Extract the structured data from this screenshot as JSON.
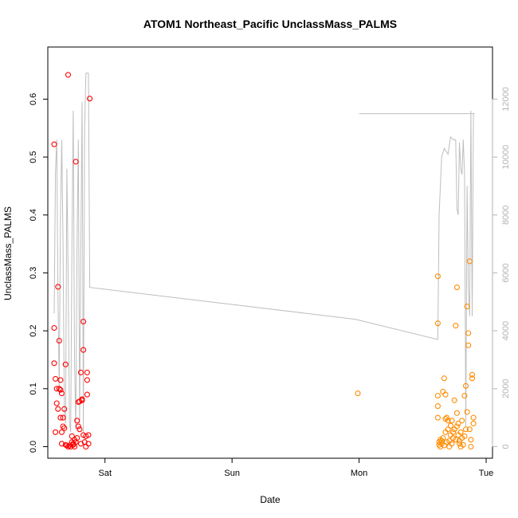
{
  "chart_data": {
    "type": "scatter",
    "title": "ATOM1 Northeast_Pacific UnclassMass_PALMS",
    "xlabel": "Date",
    "ylabel": "UnclassMass_PALMS",
    "x_ticks": [
      "Sat",
      "Sun",
      "Mon",
      "Tue"
    ],
    "x_range_days": [
      -0.45,
      3.05
    ],
    "ylim": [
      -0.02,
      0.69
    ],
    "y_ticks": [
      "0.0",
      "0.1",
      "0.2",
      "0.3",
      "0.4",
      "0.5",
      "0.6"
    ],
    "y2_ticks": [
      "0",
      "2000",
      "4000",
      "6000",
      "8000",
      "10000",
      "12000"
    ],
    "y2lim": [
      -400,
      13800
    ],
    "grid": false,
    "legend": "none",
    "colors": {
      "series1": "#ff0000",
      "series2": "#ff8c00",
      "altitude": "#bebebe",
      "axis": "#000000",
      "right_axis": "#b3b3b3"
    },
    "series": [
      {
        "color": "#ff0000",
        "points": [
          [
            -0.4,
            0.522
          ],
          [
            -0.4,
            0.205
          ],
          [
            -0.4,
            0.144
          ],
          [
            -0.39,
            0.117
          ],
          [
            -0.39,
            0.025
          ],
          [
            -0.38,
            0.1
          ],
          [
            -0.38,
            0.075
          ],
          [
            -0.37,
            0.065
          ],
          [
            -0.37,
            0.276
          ],
          [
            -0.36,
            0.183
          ],
          [
            -0.36,
            0.1
          ],
          [
            -0.35,
            0.115
          ],
          [
            -0.35,
            0.098
          ],
          [
            -0.35,
            0.05
          ],
          [
            -0.34,
            0.092
          ],
          [
            -0.34,
            0.025
          ],
          [
            -0.34,
            0.005
          ],
          [
            -0.33,
            0.05
          ],
          [
            -0.33,
            0.035
          ],
          [
            -0.32,
            0.065
          ],
          [
            -0.32,
            0.032
          ],
          [
            -0.31,
            0.142
          ],
          [
            -0.31,
            0.003
          ],
          [
            -0.3,
            0.002
          ],
          [
            -0.29,
            0.642
          ],
          [
            -0.29,
            0.0
          ],
          [
            -0.28,
            0.002
          ],
          [
            -0.27,
            0.0
          ],
          [
            -0.26,
            0.018
          ],
          [
            -0.26,
            0.008
          ],
          [
            -0.25,
            0.005
          ],
          [
            -0.25,
            0.003
          ],
          [
            -0.24,
            0.012
          ],
          [
            -0.24,
            0.0
          ],
          [
            -0.23,
            0.492
          ],
          [
            -0.23,
            0.008
          ],
          [
            -0.22,
            0.015
          ],
          [
            -0.22,
            0.045
          ],
          [
            -0.21,
            0.077
          ],
          [
            -0.21,
            0.035
          ],
          [
            -0.2,
            0.078
          ],
          [
            -0.2,
            0.03
          ],
          [
            -0.19,
            0.005
          ],
          [
            -0.19,
            0.128
          ],
          [
            -0.18,
            0.08
          ],
          [
            -0.18,
            0.082
          ],
          [
            -0.17,
            0.216
          ],
          [
            -0.17,
            0.167
          ],
          [
            -0.17,
            0.02
          ],
          [
            -0.16,
            0.008
          ],
          [
            -0.15,
            0.0
          ],
          [
            -0.15,
            0.018
          ],
          [
            -0.14,
            0.115
          ],
          [
            -0.14,
            0.09
          ],
          [
            -0.14,
            0.128
          ],
          [
            -0.13,
            0.005
          ],
          [
            -0.13,
            0.02
          ],
          [
            -0.12,
            0.601
          ]
        ]
      },
      {
        "color": "#ff8c00",
        "points": [
          [
            1.99,
            0.092
          ],
          [
            2.62,
            0.294
          ],
          [
            2.62,
            0.213
          ],
          [
            2.62,
            0.088
          ],
          [
            2.62,
            0.07
          ],
          [
            2.62,
            0.05
          ],
          [
            2.63,
            0.008
          ],
          [
            2.63,
            0.003
          ],
          [
            2.64,
            0.012
          ],
          [
            2.64,
            0.0
          ],
          [
            2.65,
            0.01
          ],
          [
            2.65,
            0.005
          ],
          [
            2.66,
            0.095
          ],
          [
            2.66,
            0.015
          ],
          [
            2.67,
            0.118
          ],
          [
            2.67,
            0.002
          ],
          [
            2.68,
            0.09
          ],
          [
            2.68,
            0.048
          ],
          [
            2.68,
            0.025
          ],
          [
            2.69,
            0.05
          ],
          [
            2.69,
            0.008
          ],
          [
            2.7,
            0.03
          ],
          [
            2.7,
            0.045
          ],
          [
            2.71,
            0.01
          ],
          [
            2.71,
            0.0
          ],
          [
            2.72,
            0.02
          ],
          [
            2.72,
            0.036
          ],
          [
            2.73,
            0.045
          ],
          [
            2.73,
            0.005
          ],
          [
            2.74,
            0.025
          ],
          [
            2.74,
            0.015
          ],
          [
            2.75,
            0.03
          ],
          [
            2.75,
            0.08
          ],
          [
            2.76,
            0.209
          ],
          [
            2.76,
            0.012
          ],
          [
            2.77,
            0.275
          ],
          [
            2.77,
            0.058
          ],
          [
            2.77,
            0.035
          ],
          [
            2.78,
            0.02
          ],
          [
            2.78,
            0.04
          ],
          [
            2.79,
            0.01
          ],
          [
            2.79,
            0.005
          ],
          [
            2.8,
            0.025
          ],
          [
            2.8,
            0.0
          ],
          [
            2.81,
            0.045
          ],
          [
            2.81,
            0.015
          ],
          [
            2.82,
            0.003
          ],
          [
            2.83,
            0.088
          ],
          [
            2.83,
            0.018
          ],
          [
            2.84,
            0.105
          ],
          [
            2.84,
            0.03
          ],
          [
            2.85,
            0.242
          ],
          [
            2.85,
            0.06
          ],
          [
            2.86,
            0.175
          ],
          [
            2.86,
            0.196
          ],
          [
            2.87,
            0.32
          ],
          [
            2.87,
            0.03
          ],
          [
            2.88,
            0.012
          ],
          [
            2.88,
            0.0
          ],
          [
            2.89,
            0.118
          ],
          [
            2.89,
            0.124
          ],
          [
            2.9,
            0.05
          ],
          [
            2.9,
            0.04
          ]
        ]
      }
    ],
    "altitude_line": {
      "color": "#bebebe",
      "points": [
        [
          -0.4,
          4600
        ],
        [
          -0.39,
          9500
        ],
        [
          -0.38,
          10600
        ],
        [
          -0.37,
          5000
        ],
        [
          -0.36,
          2000
        ],
        [
          -0.35,
          8000
        ],
        [
          -0.34,
          10600
        ],
        [
          -0.33,
          7000
        ],
        [
          -0.32,
          1200
        ],
        [
          -0.31,
          800
        ],
        [
          -0.3,
          9600
        ],
        [
          -0.29,
          6000
        ],
        [
          -0.28,
          900
        ],
        [
          -0.27,
          500
        ],
        [
          -0.26,
          7000
        ],
        [
          -0.25,
          11600
        ],
        [
          -0.24,
          3000
        ],
        [
          -0.23,
          600
        ],
        [
          -0.22,
          7000
        ],
        [
          -0.21,
          10600
        ],
        [
          -0.2,
          800
        ],
        [
          -0.19,
          7000
        ],
        [
          -0.18,
          11900
        ],
        [
          -0.17,
          500
        ],
        [
          -0.16,
          11000
        ],
        [
          -0.15,
          12900
        ],
        [
          -0.14,
          12900
        ],
        [
          -0.13,
          12900
        ],
        [
          -0.12,
          5500
        ],
        [
          1.97,
          4400
        ],
        [
          2.62,
          3700
        ],
        [
          2.63,
          8000
        ],
        [
          2.64,
          9000
        ],
        [
          2.65,
          10000
        ],
        [
          2.67,
          10300
        ],
        [
          2.7,
          10100
        ],
        [
          2.72,
          10700
        ],
        [
          2.74,
          10600
        ],
        [
          2.76,
          10600
        ],
        [
          2.77,
          8200
        ],
        [
          2.78,
          8000
        ],
        [
          2.79,
          10500
        ],
        [
          2.8,
          9600
        ],
        [
          2.81,
          9400
        ],
        [
          2.82,
          10600
        ],
        [
          2.83,
          9400
        ],
        [
          2.84,
          700
        ],
        [
          2.85,
          9000
        ],
        [
          2.86,
          5500
        ],
        [
          2.87,
          4500
        ],
        [
          2.88,
          11600
        ],
        [
          2.89,
          4500
        ],
        [
          2.9,
          11500
        ],
        [
          2.91,
          11500
        ],
        [
          2.0,
          11500
        ]
      ]
    }
  }
}
